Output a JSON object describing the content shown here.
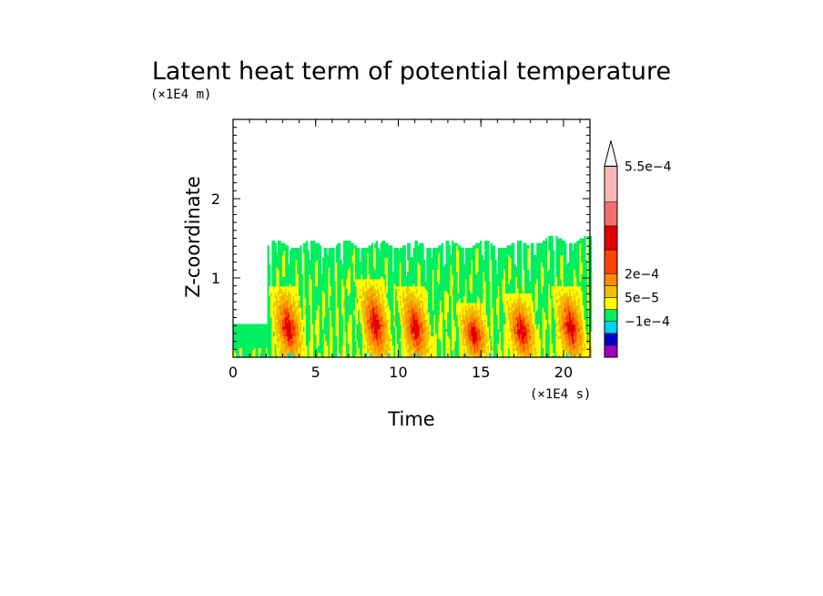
{
  "chart_data": {
    "type": "heatmap",
    "title": "Latent heat term of potential temperature",
    "xlabel": "Time",
    "ylabel": "Z-coordinate",
    "x_unit": "(×1E4 s)",
    "y_unit": "(×1E4 m)",
    "xlim": [
      0,
      21.6
    ],
    "ylim": [
      0,
      3.0
    ],
    "x_ticks": [
      "0",
      "5",
      "10",
      "15",
      "20"
    ],
    "x_tick_values": [
      0,
      5,
      10,
      15,
      20
    ],
    "y_ticks": [
      "1",
      "2"
    ],
    "y_tick_values": [
      1,
      2
    ],
    "colorbar": {
      "colors": [
        "#a000c0",
        "#0000c8",
        "#00d2f0",
        "#00ee60",
        "#ffff00",
        "#f0c000",
        "#ff8c00",
        "#ff4400",
        "#e00000",
        "#f07070",
        "#f8b8b8"
      ],
      "labels": [
        "−1e−4",
        "5e−5",
        "2e−4",
        "5.5e−4"
      ],
      "label_after_level": [
        3,
        5,
        7,
        11
      ],
      "extend": "max"
    },
    "regions": {
      "background_level": 4,
      "green_layer_top_before_x2": 0.43,
      "green_layer_start_x": 2.1,
      "green_layer_top": 1.42,
      "green_layer_top_late": 1.48,
      "convective_bursts": [
        {
          "x": 3.3,
          "ztop": 0.9
        },
        {
          "x": 8.6,
          "ztop": 1.0
        },
        {
          "x": 11.0,
          "ztop": 0.9
        },
        {
          "x": 14.5,
          "ztop": 0.7
        },
        {
          "x": 17.4,
          "ztop": 0.8
        },
        {
          "x": 20.4,
          "ztop": 0.9
        }
      ]
    }
  }
}
